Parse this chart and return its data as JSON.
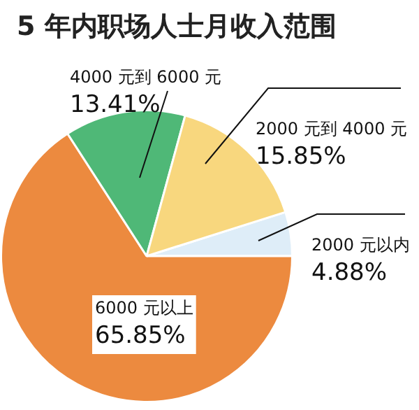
{
  "chart_data": {
    "type": "pie",
    "title": "5 年内职场人士月收入范围",
    "categories": [
      "2000 元以内",
      "6000 元以上",
      "4000 元到 6000 元",
      "2000 元到 4000 元"
    ],
    "values": [
      4.88,
      65.85,
      13.41,
      15.85
    ],
    "colors": [
      "#deedf8",
      "#ec8a3f",
      "#4fb877",
      "#f8d77e"
    ],
    "value_labels": [
      "4.88%",
      "65.85%",
      "13.41%",
      "15.85%"
    ],
    "legend": false
  }
}
